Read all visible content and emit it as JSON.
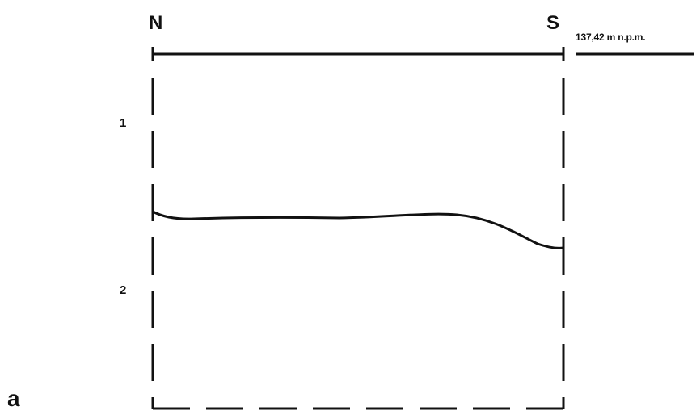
{
  "section": {
    "north_label": "N",
    "south_label": "S",
    "elevation_label": "137,42 m n.p.m.",
    "layers": [
      "1",
      "2"
    ],
    "figure_label": "a"
  },
  "colors": {
    "line": "#111111",
    "background": "#ffffff"
  }
}
